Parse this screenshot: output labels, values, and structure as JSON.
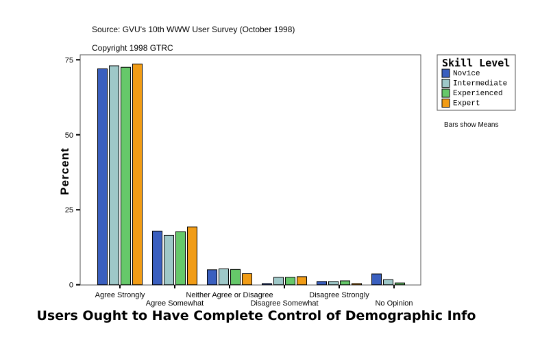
{
  "chart_data": {
    "type": "bar",
    "title": "Users Ought to Have Complete Control of Demographic Info",
    "subtitle": [
      "Source: GVU's 10th WWW User Survey (October 1998)",
      "Copyright 1998 GTRC"
    ],
    "xlabel": "",
    "ylabel": "Percent",
    "ylim": [
      0,
      77
    ],
    "yticks": [
      0,
      25,
      50,
      75
    ],
    "grid": false,
    "legend_title": "Skill Level",
    "legend_position": "top-right",
    "note": "Bars show Means",
    "categories": [
      "Agree Strongly",
      "Agree Somewhat",
      "Neither Agree or Disagree",
      "Disagree Somewhat",
      "Disagree Strongly",
      "No Opinion"
    ],
    "series": [
      {
        "name": "Novice",
        "color": "#3a5fbf",
        "values": [
          72.0,
          17.9,
          5.0,
          0.4,
          1.1,
          3.6
        ]
      },
      {
        "name": "Intermediate",
        "color": "#9ec8c8",
        "values": [
          73.0,
          16.5,
          5.3,
          2.5,
          1.1,
          1.7
        ]
      },
      {
        "name": "Experienced",
        "color": "#66c86a",
        "values": [
          72.5,
          17.7,
          5.1,
          2.5,
          1.3,
          0.6
        ]
      },
      {
        "name": "Expert",
        "color": "#f19c16",
        "values": [
          73.6,
          19.3,
          3.7,
          2.7,
          0.4,
          0
        ]
      }
    ]
  }
}
